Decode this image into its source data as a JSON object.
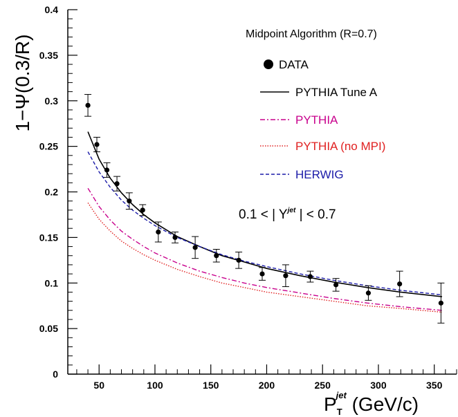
{
  "chart_data": {
    "type": "scatter",
    "title": "Midpoint Algorithm (R=0.7)",
    "annotation": "0.1 < | Y^jet | < 0.7",
    "annotation_parts": {
      "pre": "0.1 < | Y",
      "sup": "jet",
      "post": " | < 0.7"
    },
    "ylabel": "1−Ψ(0.3/R)",
    "xlabel": {
      "main": "P",
      "sub": "T",
      "sup": "jet",
      "unit": " (GeV/c)"
    },
    "xlim": [
      22,
      370
    ],
    "ylim": [
      0,
      0.4
    ],
    "x_ticks": [
      50,
      100,
      150,
      200,
      250,
      300,
      350
    ],
    "x_tick_labels": [
      "50",
      "100",
      "150",
      "200",
      "250",
      "300",
      "350"
    ],
    "y_ticks": [
      0,
      0.05,
      0.1,
      0.15,
      0.2,
      0.25,
      0.3,
      0.35,
      0.4
    ],
    "y_tick_labels": [
      "0",
      "0.05",
      "0.1",
      "0.15",
      "0.2",
      "0.25",
      "0.3",
      "0.35",
      "0.4"
    ],
    "legend_position": "top-right",
    "series": [
      {
        "name": "DATA",
        "kind": "points",
        "color": "#000000",
        "x": [
          40,
          48,
          57,
          66,
          77,
          89,
          103,
          118,
          136,
          155,
          175,
          196,
          217,
          239,
          262,
          291,
          319,
          356
        ],
        "y": [
          0.295,
          0.252,
          0.224,
          0.209,
          0.19,
          0.18,
          0.156,
          0.15,
          0.139,
          0.13,
          0.125,
          0.11,
          0.108,
          0.107,
          0.098,
          0.089,
          0.099,
          0.078
        ],
        "err": [
          0.012,
          0.008,
          0.008,
          0.008,
          0.009,
          0.006,
          0.011,
          0.006,
          0.012,
          0.007,
          0.009,
          0.007,
          0.012,
          0.006,
          0.007,
          0.008,
          0.014,
          0.022
        ]
      },
      {
        "name": "PYTHIA Tune A",
        "kind": "line",
        "color": "#000000",
        "dash": "",
        "x": [
          40,
          50,
          60,
          70,
          80,
          90,
          100,
          120,
          140,
          160,
          180,
          200,
          230,
          260,
          290,
          320,
          357
        ],
        "y": [
          0.266,
          0.236,
          0.215,
          0.199,
          0.186,
          0.175,
          0.166,
          0.151,
          0.14,
          0.13,
          0.123,
          0.116,
          0.108,
          0.101,
          0.095,
          0.09,
          0.085
        ]
      },
      {
        "name": "PYTHIA",
        "kind": "line",
        "color": "#c8008c",
        "dash": "7,3,2,3",
        "x": [
          40,
          50,
          60,
          70,
          80,
          90,
          100,
          120,
          140,
          160,
          180,
          200,
          230,
          260,
          290,
          320,
          357
        ],
        "y": [
          0.204,
          0.184,
          0.169,
          0.157,
          0.148,
          0.14,
          0.133,
          0.122,
          0.113,
          0.106,
          0.1,
          0.095,
          0.089,
          0.083,
          0.078,
          0.074,
          0.07
        ]
      },
      {
        "name": "PYTHIA (no MPI)",
        "kind": "line",
        "color": "#e02020",
        "dash": "1.5,2",
        "x": [
          40,
          50,
          60,
          70,
          80,
          90,
          100,
          120,
          140,
          160,
          180,
          200,
          230,
          260,
          290,
          320,
          357
        ],
        "y": [
          0.188,
          0.17,
          0.157,
          0.146,
          0.138,
          0.131,
          0.125,
          0.115,
          0.107,
          0.1,
          0.095,
          0.09,
          0.085,
          0.08,
          0.075,
          0.072,
          0.068
        ]
      },
      {
        "name": "HERWIG",
        "kind": "line",
        "color": "#1a1aa8",
        "dash": "5,3",
        "x": [
          40,
          50,
          60,
          70,
          80,
          90,
          100,
          120,
          140,
          160,
          180,
          200,
          230,
          260,
          290,
          320,
          357
        ],
        "y": [
          0.244,
          0.222,
          0.205,
          0.191,
          0.18,
          0.171,
          0.163,
          0.15,
          0.14,
          0.131,
          0.124,
          0.118,
          0.11,
          0.103,
          0.097,
          0.092,
          0.087
        ]
      }
    ]
  }
}
